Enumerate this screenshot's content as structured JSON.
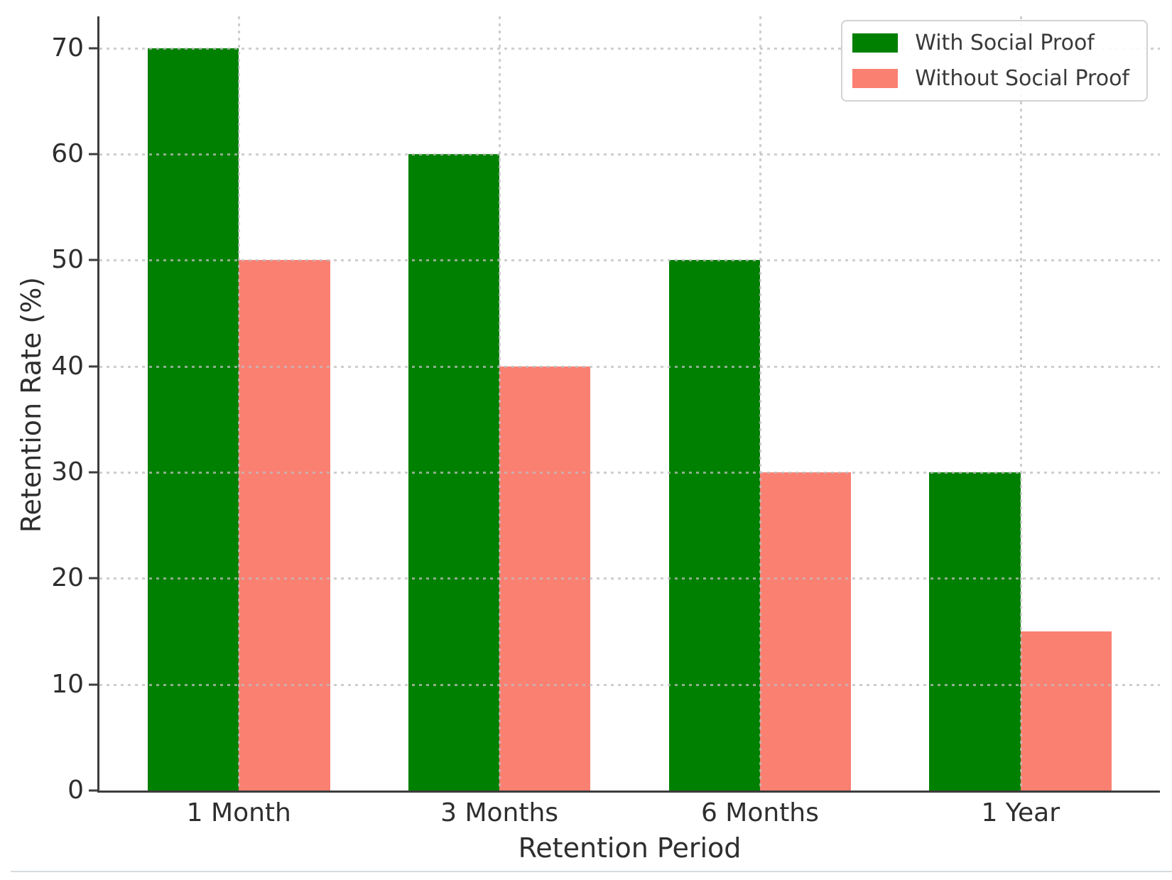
{
  "chart_data": {
    "type": "bar",
    "title": "",
    "xlabel": "Retention Period",
    "ylabel": "Retention Rate (%)",
    "categories": [
      "1 Month",
      "3 Months",
      "6 Months",
      "1 Year"
    ],
    "series": [
      {
        "name": "With Social Proof",
        "color": "#008000",
        "values": [
          70,
          60,
          50,
          30
        ]
      },
      {
        "name": "Without Social Proof",
        "color": "#fa8072",
        "values": [
          50,
          40,
          30,
          15
        ]
      }
    ],
    "ylim": [
      0,
      73
    ],
    "yticks": [
      0,
      10,
      20,
      30,
      40,
      50,
      60,
      70
    ],
    "grid": "dotted",
    "grid_color": "#bebebe",
    "axis_color": "#3d3d3d",
    "tick_label_color": "#2e2e2e",
    "legend_position": "upper right",
    "bar_width_fraction": 0.35
  },
  "page": {
    "bottom_rule_color": "#d7dbdf",
    "background": "#ffffff"
  }
}
